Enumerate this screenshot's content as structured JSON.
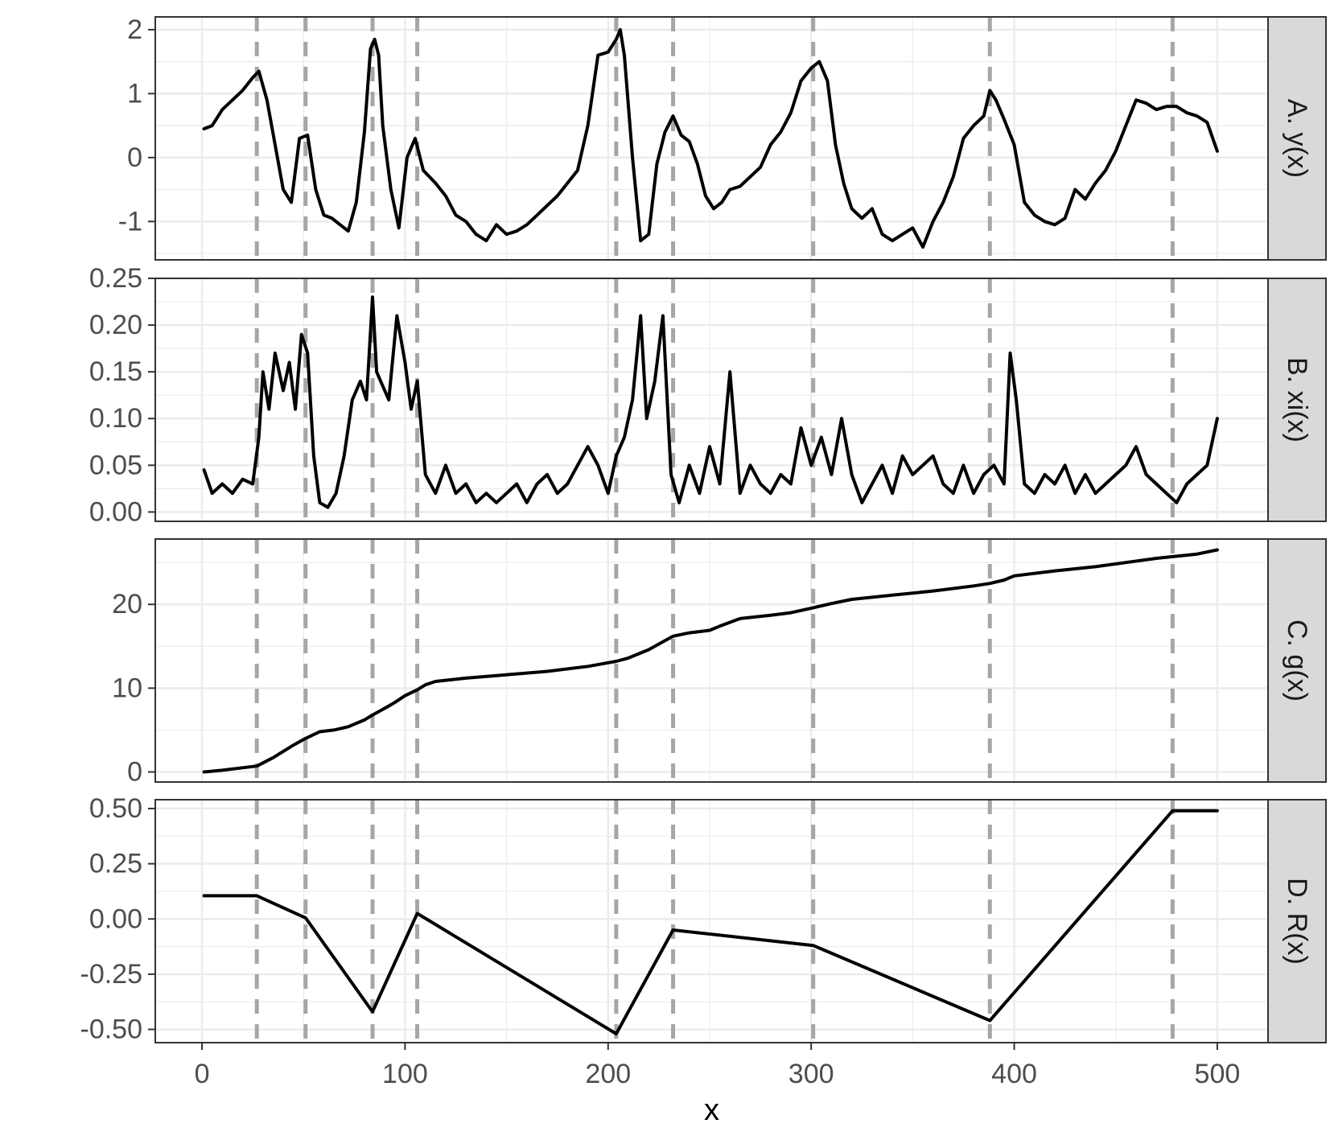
{
  "chart_data": {
    "type": "line",
    "xlabel": "x",
    "xlim": [
      -23,
      525
    ],
    "x_ticks": [
      0,
      100,
      200,
      300,
      400,
      500
    ],
    "x_tick_labels": [
      "0",
      "100",
      "200",
      "300",
      "400",
      "500"
    ],
    "grid": true,
    "theme_colors": {
      "line": "#000000",
      "vline": "#a6a6a6",
      "grid": "#ebebeb",
      "strip_bg": "#d9d9d9",
      "panel_border": "#333333"
    },
    "vlines_x": [
      27,
      51,
      84,
      106,
      204,
      232,
      301,
      388,
      478
    ],
    "panels": [
      {
        "strip_label": "A. y(x)",
        "ylim": [
          -1.6,
          2.2
        ],
        "y_ticks": [
          -1,
          0,
          1,
          2
        ],
        "y_tick_labels": [
          "-1",
          "0",
          "1",
          "2"
        ],
        "x": [
          1,
          5,
          10,
          15,
          20,
          25,
          28,
          32,
          36,
          40,
          44,
          48,
          52,
          56,
          60,
          64,
          68,
          72,
          76,
          80,
          83,
          85,
          87,
          89,
          93,
          97,
          101,
          105,
          109,
          115,
          120,
          125,
          130,
          135,
          140,
          145,
          150,
          155,
          160,
          165,
          170,
          175,
          180,
          185,
          190,
          195,
          200,
          204,
          206,
          208,
          212,
          216,
          220,
          224,
          228,
          232,
          236,
          240,
          244,
          248,
          252,
          256,
          260,
          265,
          270,
          275,
          280,
          285,
          290,
          295,
          300,
          304,
          308,
          312,
          316,
          320,
          325,
          330,
          335,
          340,
          345,
          350,
          355,
          360,
          365,
          370,
          375,
          380,
          385,
          388,
          391,
          395,
          400,
          405,
          410,
          415,
          420,
          425,
          430,
          435,
          440,
          445,
          450,
          455,
          460,
          465,
          470,
          475,
          480,
          485,
          490,
          495,
          500
        ],
        "y": [
          0.45,
          0.5,
          0.75,
          0.9,
          1.05,
          1.25,
          1.35,
          0.9,
          0.2,
          -0.5,
          -0.7,
          0.3,
          0.35,
          -0.5,
          -0.9,
          -0.95,
          -1.05,
          -1.15,
          -0.7,
          0.4,
          1.7,
          1.85,
          1.6,
          0.5,
          -0.5,
          -1.1,
          0.0,
          0.3,
          -0.2,
          -0.4,
          -0.6,
          -0.9,
          -1.0,
          -1.2,
          -1.3,
          -1.05,
          -1.2,
          -1.15,
          -1.05,
          -0.9,
          -0.75,
          -0.6,
          -0.4,
          -0.2,
          0.5,
          1.6,
          1.65,
          1.85,
          2.0,
          1.6,
          0.0,
          -1.3,
          -1.2,
          -0.1,
          0.4,
          0.65,
          0.35,
          0.25,
          -0.1,
          -0.6,
          -0.8,
          -0.7,
          -0.5,
          -0.45,
          -0.3,
          -0.15,
          0.2,
          0.4,
          0.7,
          1.2,
          1.4,
          1.5,
          1.2,
          0.2,
          -0.4,
          -0.8,
          -0.95,
          -0.8,
          -1.2,
          -1.3,
          -1.2,
          -1.1,
          -1.4,
          -1.0,
          -0.7,
          -0.3,
          0.3,
          0.5,
          0.65,
          1.05,
          0.9,
          0.6,
          0.2,
          -0.7,
          -0.9,
          -1.0,
          -1.05,
          -0.95,
          -0.5,
          -0.65,
          -0.4,
          -0.2,
          0.1,
          0.5,
          0.9,
          0.85,
          0.75,
          0.8,
          0.8,
          0.7,
          0.65,
          0.55,
          0.1
        ]
      },
      {
        "strip_label": "B. xi(x)",
        "ylim": [
          -0.01,
          0.25
        ],
        "y_ticks": [
          0.0,
          0.05,
          0.1,
          0.15,
          0.2,
          0.25
        ],
        "y_tick_labels": [
          "0.00",
          "0.05",
          "0.10",
          "0.15",
          "0.20",
          "0.25"
        ],
        "x": [
          1,
          5,
          10,
          15,
          20,
          25,
          28,
          30,
          33,
          36,
          40,
          43,
          46,
          49,
          52,
          55,
          58,
          62,
          66,
          70,
          74,
          78,
          81,
          84,
          86,
          88,
          92,
          96,
          100,
          103,
          106,
          110,
          115,
          120,
          125,
          130,
          135,
          140,
          145,
          150,
          155,
          160,
          165,
          170,
          175,
          180,
          185,
          190,
          195,
          200,
          204,
          208,
          212,
          216,
          219,
          223,
          227,
          231,
          235,
          240,
          245,
          250,
          255,
          260,
          265,
          270,
          275,
          280,
          285,
          290,
          295,
          300,
          305,
          310,
          315,
          320,
          325,
          330,
          335,
          340,
          345,
          350,
          355,
          360,
          365,
          370,
          375,
          380,
          385,
          390,
          395,
          398,
          401,
          405,
          410,
          415,
          420,
          425,
          430,
          435,
          440,
          445,
          450,
          455,
          460,
          465,
          470,
          475,
          480,
          485,
          490,
          495,
          500
        ],
        "y": [
          0.045,
          0.02,
          0.03,
          0.02,
          0.035,
          0.03,
          0.08,
          0.15,
          0.11,
          0.17,
          0.13,
          0.16,
          0.11,
          0.19,
          0.17,
          0.06,
          0.01,
          0.005,
          0.02,
          0.06,
          0.12,
          0.14,
          0.12,
          0.23,
          0.15,
          0.14,
          0.12,
          0.21,
          0.16,
          0.11,
          0.14,
          0.04,
          0.02,
          0.05,
          0.02,
          0.03,
          0.01,
          0.02,
          0.01,
          0.02,
          0.03,
          0.01,
          0.03,
          0.04,
          0.02,
          0.03,
          0.05,
          0.07,
          0.05,
          0.02,
          0.06,
          0.08,
          0.12,
          0.21,
          0.1,
          0.14,
          0.21,
          0.04,
          0.01,
          0.05,
          0.02,
          0.07,
          0.03,
          0.15,
          0.02,
          0.05,
          0.03,
          0.02,
          0.04,
          0.03,
          0.09,
          0.05,
          0.08,
          0.04,
          0.1,
          0.04,
          0.01,
          0.03,
          0.05,
          0.02,
          0.06,
          0.04,
          0.05,
          0.06,
          0.03,
          0.02,
          0.05,
          0.02,
          0.04,
          0.05,
          0.03,
          0.17,
          0.12,
          0.03,
          0.02,
          0.04,
          0.03,
          0.05,
          0.02,
          0.04,
          0.02,
          0.03,
          0.04,
          0.05,
          0.07,
          0.04,
          0.03,
          0.02,
          0.01,
          0.03,
          0.04,
          0.05,
          0.1
        ]
      },
      {
        "strip_label": "C. g(x)",
        "ylim": [
          -1.2,
          27.8
        ],
        "y_ticks": [
          0,
          10,
          20
        ],
        "y_tick_labels": [
          "0",
          "10",
          "20"
        ],
        "x": [
          1,
          10,
          20,
          27,
          35,
          45,
          51,
          58,
          65,
          72,
          80,
          84,
          90,
          95,
          100,
          106,
          110,
          115,
          130,
          150,
          170,
          190,
          204,
          210,
          220,
          232,
          240,
          250,
          255,
          265,
          280,
          290,
          301,
          310,
          320,
          340,
          360,
          380,
          388,
          395,
          400,
          420,
          440,
          455,
          470,
          478,
          490,
          500
        ],
        "y": [
          0,
          0.2,
          0.5,
          0.7,
          1.7,
          3.2,
          4.0,
          4.8,
          5.0,
          5.4,
          6.2,
          6.8,
          7.6,
          8.3,
          9.1,
          9.8,
          10.4,
          10.8,
          11.2,
          11.6,
          12.0,
          12.6,
          13.2,
          13.6,
          14.6,
          16.2,
          16.6,
          16.9,
          17.4,
          18.3,
          18.7,
          19.0,
          19.6,
          20.1,
          20.6,
          21.1,
          21.6,
          22.2,
          22.5,
          22.9,
          23.4,
          24.0,
          24.5,
          25.0,
          25.5,
          25.7,
          26.0,
          26.5
        ]
      },
      {
        "strip_label": "D. R(x)",
        "ylim": [
          -0.56,
          0.54
        ],
        "y_ticks": [
          -0.5,
          -0.25,
          0.0,
          0.25,
          0.5
        ],
        "y_tick_labels": [
          "-0.50",
          "-0.25",
          "0.00",
          "0.25",
          "0.50"
        ],
        "x": [
          1,
          27,
          51,
          84,
          106,
          204,
          232,
          301,
          388,
          478,
          500
        ],
        "y": [
          0.105,
          0.105,
          0.005,
          -0.42,
          0.025,
          -0.52,
          -0.05,
          -0.12,
          -0.46,
          0.49,
          0.49
        ]
      }
    ]
  }
}
